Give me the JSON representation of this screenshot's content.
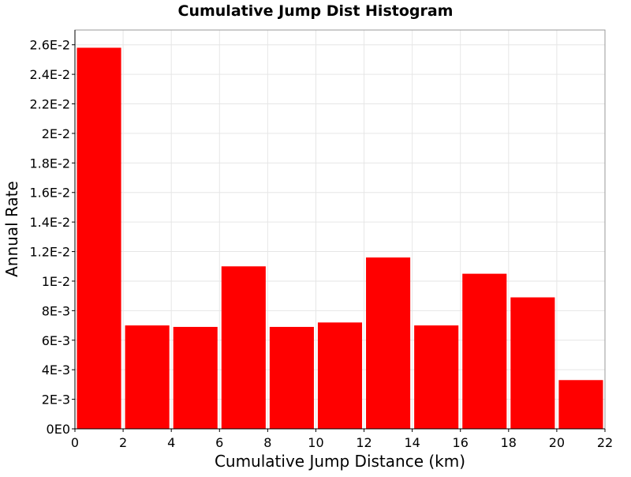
{
  "chart_data": {
    "type": "bar",
    "title": "Cumulative Jump Dist Histogram",
    "xlabel": "Cumulative Jump Distance (km)",
    "ylabel": "Annual Rate",
    "xlim": [
      0,
      22
    ],
    "ylim": [
      0,
      0.027
    ],
    "x_ticks": [
      0,
      2,
      4,
      6,
      8,
      10,
      12,
      14,
      16,
      18,
      20,
      22
    ],
    "x_tick_labels": [
      "0",
      "2",
      "4",
      "6",
      "8",
      "10",
      "12",
      "14",
      "16",
      "18",
      "20",
      "22"
    ],
    "y_ticks": [
      0,
      0.002,
      0.004,
      0.006,
      0.008,
      0.01,
      0.012,
      0.014,
      0.016,
      0.018,
      0.02,
      0.022,
      0.024,
      0.026
    ],
    "y_tick_labels": [
      "0E0",
      "2E-3",
      "4E-3",
      "6E-3",
      "8E-3",
      "1E-2",
      "1.2E-2",
      "1.4E-2",
      "1.6E-2",
      "1.8E-2",
      "2E-2",
      "2.2E-2",
      "2.4E-2",
      "2.6E-2"
    ],
    "bins": [
      {
        "x_start": 0,
        "x_end": 2,
        "value": 0.0258
      },
      {
        "x_start": 2,
        "x_end": 4,
        "value": 0.007
      },
      {
        "x_start": 4,
        "x_end": 6,
        "value": 0.0069
      },
      {
        "x_start": 6,
        "x_end": 8,
        "value": 0.011
      },
      {
        "x_start": 8,
        "x_end": 10,
        "value": 0.0069
      },
      {
        "x_start": 10,
        "x_end": 12,
        "value": 0.0072
      },
      {
        "x_start": 12,
        "x_end": 14,
        "value": 0.0116
      },
      {
        "x_start": 14,
        "x_end": 16,
        "value": 0.007
      },
      {
        "x_start": 16,
        "x_end": 18,
        "value": 0.0105
      },
      {
        "x_start": 18,
        "x_end": 20,
        "value": 0.0089
      },
      {
        "x_start": 20,
        "x_end": 22,
        "value": 0.0033
      }
    ],
    "bar_color": "#ff0000",
    "grid": true,
    "legend": "none"
  }
}
